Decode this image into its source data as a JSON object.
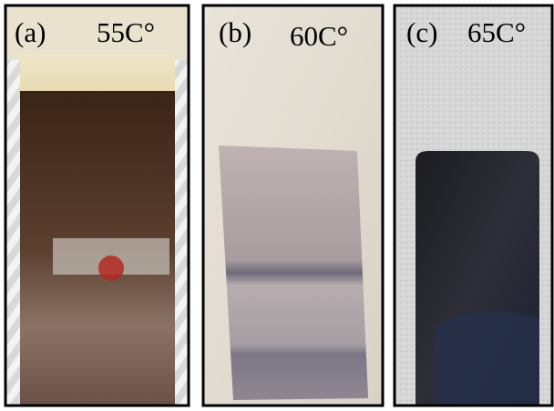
{
  "panels": [
    {
      "label": "(a)",
      "temperature": "55C°"
    },
    {
      "label": "(b)",
      "temperature": "60C°"
    },
    {
      "label": "(c)",
      "temperature": "65C°"
    }
  ]
}
